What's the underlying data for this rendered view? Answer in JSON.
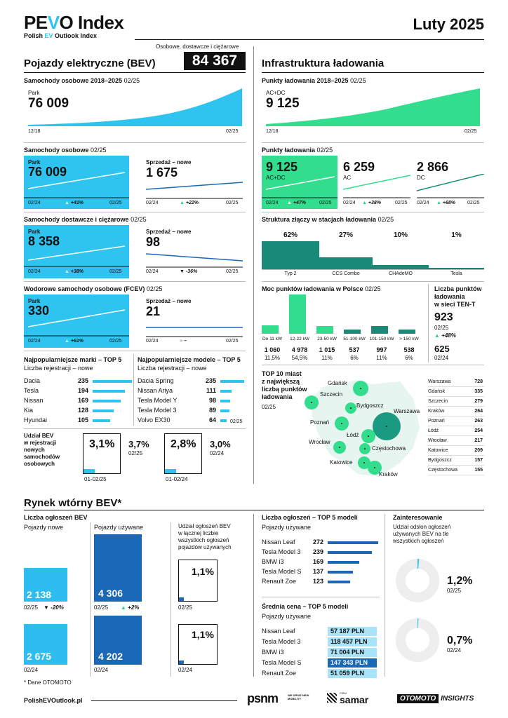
{
  "header": {
    "logo_pre": "PE",
    "logo_v": "V",
    "logo_post": "O Index",
    "sub_pre": "Polish ",
    "sub_ev": "EV",
    "sub_post": " Outlook Index",
    "date": "Luty 2025"
  },
  "bev": {
    "title": "Pojazdy elektryczne (BEV)",
    "total_caption": "Osobowe, dostawcze i ciężarowe",
    "total": "84 367",
    "park_title": "Samochody osobowe 2018–2025",
    "park_period": "02/25",
    "park_label": "Park",
    "park_value": "76 009",
    "park_x0": "12/18",
    "park_x1": "02/25",
    "cars_title": "Samochody osobowe",
    "cars_period": "02/25",
    "cars_park_label": "Park",
    "cars_park_value": "76 009",
    "cars_park_x0": "02/24",
    "cars_park_change": "+41%",
    "cars_park_x1": "02/25",
    "cars_sales_label": "Sprzedaż – nowe",
    "cars_sales_value": "1 675",
    "cars_sales_x0": "02/24",
    "cars_sales_change": "+22%",
    "cars_sales_x1": "02/25",
    "vans_title": "Samochody dostawcze i ciężarowe",
    "vans_period": "02/25",
    "vans_park_label": "Park",
    "vans_park_value": "8 358",
    "vans_park_x0": "02/24",
    "vans_park_change": "+38%",
    "vans_park_x1": "02/25",
    "vans_sales_label": "Sprzedaż – nowe",
    "vans_sales_value": "98",
    "vans_sales_x0": "02/24",
    "vans_sales_change": "-36%",
    "vans_sales_x1": "02/25",
    "fcev_title": "Wodorowe samochody osobowe (FCEV)",
    "fcev_period": "02/25",
    "fcev_park_label": "Park",
    "fcev_park_value": "330",
    "fcev_park_x0": "02/24",
    "fcev_park_change": "+61%",
    "fcev_park_x1": "02/25",
    "fcev_sales_label": "Sprzedaż – nowe",
    "fcev_sales_value": "21",
    "fcev_sales_x0": "02/24",
    "fcev_sales_change": "–",
    "fcev_sales_x1": "02/25"
  },
  "brands": {
    "title": "Najpopularniejsze marki – TOP 5",
    "sub": "Liczba rejestracji – nowe",
    "items": [
      {
        "n": "Dacia",
        "v": "235",
        "f": 1.0
      },
      {
        "n": "Tesla",
        "v": "194",
        "f": 0.83
      },
      {
        "n": "Nissan",
        "v": "169",
        "f": 0.72
      },
      {
        "n": "Kia",
        "v": "128",
        "f": 0.54
      },
      {
        "n": "Hyundai",
        "v": "105",
        "f": 0.45
      }
    ]
  },
  "models": {
    "title": "Najpopularniejsze modele – TOP 5",
    "sub": "Liczba rejestracji – nowe",
    "items": [
      {
        "n": "Dacia Spring",
        "v": "235",
        "f": 1.0
      },
      {
        "n": "Nissan Ariya",
        "v": "111",
        "f": 0.47
      },
      {
        "n": "Tesla Model Y",
        "v": "98",
        "f": 0.42
      },
      {
        "n": "Tesla Model 3",
        "v": "89",
        "f": 0.38
      },
      {
        "n": "Volvo EX30",
        "v": "64",
        "f": 0.27
      }
    ],
    "period": "02/25"
  },
  "share": {
    "label1": "Udział BEV",
    "label2": "w rejestracji",
    "label3": "nowych",
    "label4": "samochodów",
    "label5": "osobowych",
    "box1_value": "3,1%",
    "box1_caption": "01-02/25",
    "side1_value": "3,7%",
    "side1_period": "02/25",
    "box2_value": "2,8%",
    "box2_caption": "01-02/24",
    "side2_value": "3,0%",
    "side2_period": "02/24"
  },
  "infra": {
    "title": "Infrastruktura ładowania",
    "points_title": "Punkty ładowania 2018–2025",
    "points_period": "02/25",
    "points_label": "AC+DC",
    "points_value": "9 125",
    "points_x0": "12/18",
    "points_x1": "02/25",
    "pl_title": "Punkty ładowania",
    "pl_period": "02/25",
    "acdc_value": "9 125",
    "acdc_label": "AC+DC",
    "acdc_x0": "02/24",
    "acdc_change": "+47%",
    "acdc_x1": "02/25",
    "ac_value": "6 259",
    "ac_label": "AC",
    "ac_x0": "02/24",
    "ac_change": "+38%",
    "ac_x1": "02/25",
    "dc_value": "2 866",
    "dc_label": "DC",
    "dc_x0": "02/24",
    "dc_change": "+68%",
    "dc_x1": "02/25",
    "conn_title": "Struktura złączy w stacjach ładowania",
    "conn_period": "02/25",
    "connectors": [
      {
        "p": "62%",
        "n": "Typ 2",
        "f": 0.62
      },
      {
        "p": "27%",
        "n": "CCS Combo",
        "f": 0.27
      },
      {
        "p": "10%",
        "n": "CHAdeMO",
        "f": 0.1
      },
      {
        "p": "1%",
        "n": "Tesla",
        "f": 0.01
      }
    ],
    "power_title": "Moc punktów ładowania w Polsce",
    "power_period": "02/25",
    "power": [
      {
        "c": "Do 11 kW",
        "v": "1 060",
        "p": "11,5%",
        "n": 1060
      },
      {
        "c": "12-22 kW",
        "v": "4 978",
        "p": "54,5%",
        "n": 4978
      },
      {
        "c": "23-50 kW",
        "v": "1 015",
        "p": "11%",
        "n": 1015
      },
      {
        "c": "51-100 kW",
        "v": "537",
        "p": "6%",
        "n": 537
      },
      {
        "c": "101-150 kW",
        "v": "997",
        "p": "11%",
        "n": 997
      },
      {
        "c": "> 150 kW",
        "v": "538",
        "p": "6%",
        "n": 538
      }
    ],
    "tent_l1": "Liczba punktów",
    "tent_l2": "ładowania",
    "tent_l3": "w sieci TEN-T",
    "tent_value": "923",
    "tent_period": "02/25",
    "tent_change": "+48%",
    "tent_prev": "625",
    "tent_prev_period": "02/24",
    "cities_t1": "TOP 10 miast",
    "cities_t2": "z największą",
    "cities_t3": "liczbą punktów",
    "cities_t4": "ładowania",
    "cities_period": "02/25",
    "cities": [
      {
        "n": "Warszawa",
        "v": "728"
      },
      {
        "n": "Gdańsk",
        "v": "335"
      },
      {
        "n": "Szczecin",
        "v": "279"
      },
      {
        "n": "Kraków",
        "v": "264"
      },
      {
        "n": "Poznań",
        "v": "263"
      },
      {
        "n": "Łódź",
        "v": "254"
      },
      {
        "n": "Wrocław",
        "v": "217"
      },
      {
        "n": "Katowice",
        "v": "209"
      },
      {
        "n": "Bydgoszcz",
        "v": "157"
      },
      {
        "n": "Częstochowa",
        "v": "155"
      }
    ]
  },
  "used": {
    "title": "Rynek wtórny BEV*",
    "ads_title": "Liczba ogłoszeń BEV",
    "new_label": "Pojazdy nowe",
    "used_label": "Pojazdy używane",
    "new_cur": "2 138",
    "new_cur_period": "02/25",
    "new_change": "-20%",
    "new_prev": "2 675",
    "new_prev_period": "02/24",
    "used_cur": "4 306",
    "used_cur_period": "02/25",
    "used_change": "+2%",
    "used_prev": "4 202",
    "used_prev_period": "02/24",
    "share_l1": "Udział ogłoszeń BEV",
    "share_l2": "w łącznej liczbie",
    "share_l3": "wszystkich ogłoszeń",
    "share_l4": "pojazdów używanych",
    "share_cur": "1,1%",
    "share_cur_period": "02/25",
    "share_prev": "1,1%",
    "share_prev_period": "02/24",
    "top_title": "Liczba ogłoszeń – TOP 5 modeli",
    "top_sub": "Pojazdy używane",
    "top": [
      {
        "n": "Nissan Leaf",
        "v": "272",
        "f": 1.0
      },
      {
        "n": "Tesla Model 3",
        "v": "239",
        "f": 0.88
      },
      {
        "n": "BMW i3",
        "v": "169",
        "f": 0.62
      },
      {
        "n": "Tesla Model S",
        "v": "137",
        "f": 0.5
      },
      {
        "n": "Renault Zoe",
        "v": "123",
        "f": 0.45
      }
    ],
    "price_title": "Średnia cena – TOP 5 modeli",
    "price_sub": "Pojazdy używane",
    "prices": [
      {
        "n": "Nissan Leaf",
        "v": "57 187 PLN"
      },
      {
        "n": "Tesla Model 3",
        "v": "118 457 PLN"
      },
      {
        "n": "BMW i3",
        "v": "71 004 PLN"
      },
      {
        "n": "Tesla Model S",
        "v": "147 343 PLN"
      },
      {
        "n": "Renault Zoe",
        "v": "51 059 PLN"
      }
    ],
    "int_title": "Zainteresowanie",
    "int_l1": "Udział odsłon ogłoszeń",
    "int_l2": "używanych BEV na tle",
    "int_l3": "wszystkich ogłoszeń",
    "int_cur": "1,2%",
    "int_cur_period": "02/25",
    "int_prev": "0,7%",
    "int_prev_period": "02/24",
    "footnote": "* Dane OTOMOTO"
  },
  "footer": {
    "url": "PolishEVOutlook.pl",
    "logo1": "psnm",
    "logo1_sub": "WE DRIVE NEW MOBILITY",
    "logo2_pre": "FIRM",
    "logo2": "samar",
    "logo3": "OTOMOTO",
    "logo3b": "INSIGHTS"
  }
}
